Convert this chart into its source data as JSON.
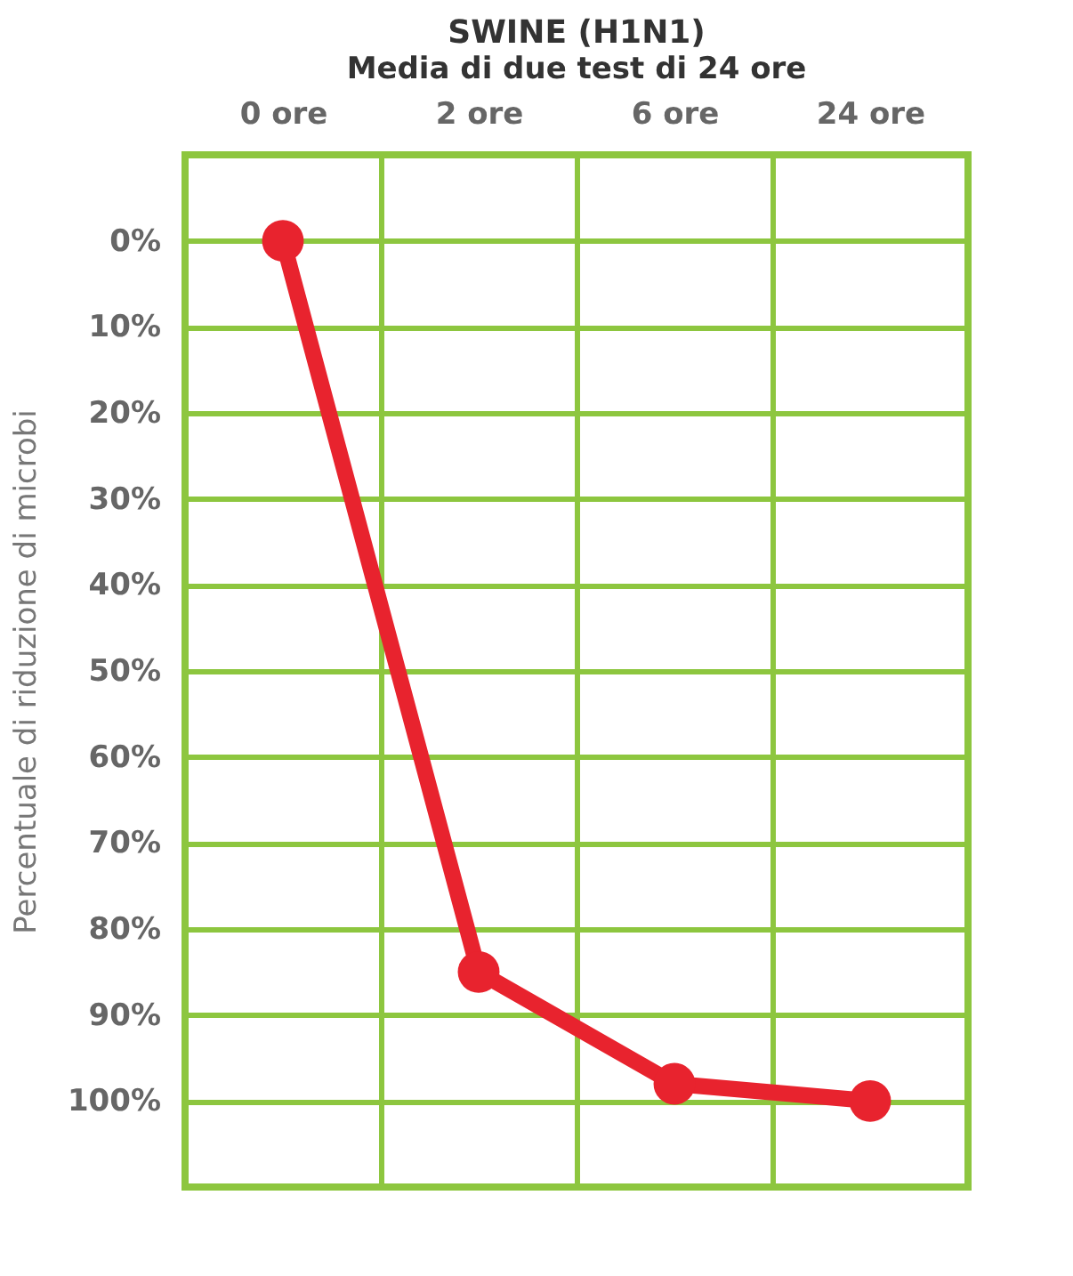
{
  "chart_data": {
    "type": "line",
    "title": "SWINE (H1N1)",
    "subtitle": "Media di due test di 24 ore",
    "ylabel": "Percentuale di riduzione di microbi",
    "categories": [
      "0 ore",
      "2 ore",
      "6 ore",
      "24 ore"
    ],
    "series": [
      {
        "color": "#e8232e",
        "values": [
          0,
          85,
          98,
          100
        ]
      }
    ],
    "ylim": [
      110,
      -10
    ],
    "yticks": [
      {
        "value": 0,
        "label": "0%"
      },
      {
        "value": 10,
        "label": "10%"
      },
      {
        "value": 20,
        "label": "20%"
      },
      {
        "value": 30,
        "label": "30%"
      },
      {
        "value": 40,
        "label": "40%"
      },
      {
        "value": 50,
        "label": "50%"
      },
      {
        "value": 60,
        "label": "60%"
      },
      {
        "value": 70,
        "label": "70%"
      },
      {
        "value": 80,
        "label": "80%"
      },
      {
        "value": 90,
        "label": "90%"
      },
      {
        "value": 100,
        "label": "100%"
      }
    ],
    "grid": true,
    "marker": "circle",
    "line_style": "solid"
  }
}
